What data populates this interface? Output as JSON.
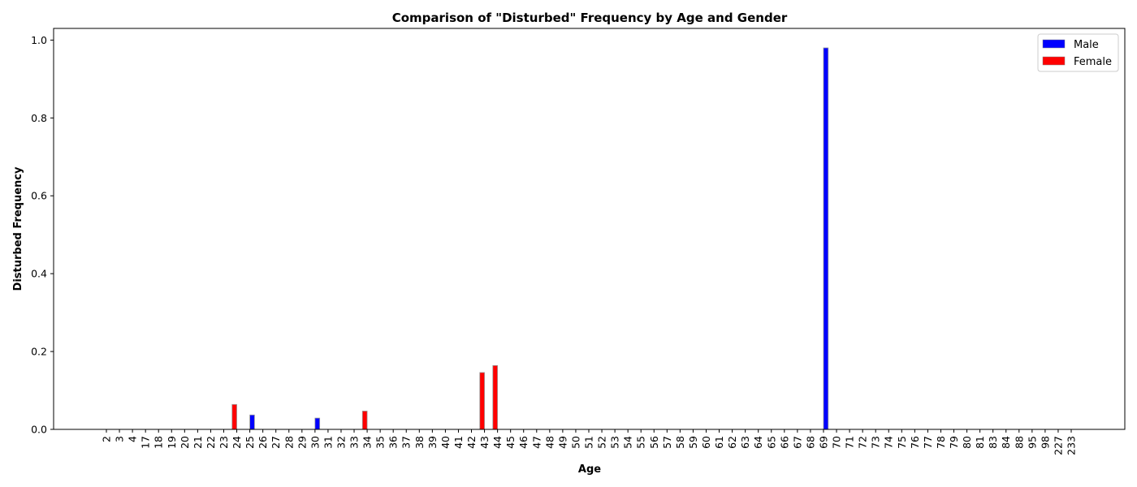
{
  "chart_data": {
    "type": "bar",
    "title": "Comparison of \"Disturbed\" Frequency by Age and Gender",
    "xlabel": "Age",
    "ylabel": "Disturbed Frequency",
    "ylim": [
      0,
      1.03
    ],
    "yticks": [
      "0.0",
      "0.2",
      "0.4",
      "0.6",
      "0.8",
      "1.0"
    ],
    "grid": false,
    "legend_position": "top-right",
    "categories": [
      "2",
      "3",
      "4",
      "17",
      "18",
      "19",
      "20",
      "21",
      "22",
      "23",
      "24",
      "25",
      "26",
      "27",
      "28",
      "29",
      "30",
      "31",
      "32",
      "33",
      "34",
      "35",
      "36",
      "37",
      "38",
      "39",
      "40",
      "41",
      "42",
      "43",
      "44",
      "45",
      "46",
      "47",
      "48",
      "49",
      "50",
      "51",
      "52",
      "53",
      "54",
      "55",
      "56",
      "57",
      "58",
      "59",
      "60",
      "61",
      "62",
      "63",
      "64",
      "65",
      "66",
      "67",
      "68",
      "69",
      "70",
      "71",
      "72",
      "73",
      "74",
      "75",
      "76",
      "77",
      "78",
      "79",
      "80",
      "81",
      "83",
      "84",
      "88",
      "95",
      "98",
      "227",
      "233"
    ],
    "series": [
      {
        "name": "Male",
        "color": "#0000ff",
        "values": [
          0,
          0,
          0,
          0,
          0,
          0,
          0,
          0,
          0,
          0,
          0,
          0.037,
          0,
          0,
          0,
          0,
          0.029,
          0,
          0,
          0,
          0,
          0,
          0,
          0,
          0,
          0,
          0,
          0,
          0,
          0,
          0,
          0,
          0,
          0,
          0,
          0,
          0,
          0,
          0,
          0,
          0,
          0,
          0,
          0,
          0,
          0,
          0,
          0,
          0,
          0,
          0,
          0,
          0,
          0,
          0,
          0.98,
          0,
          0,
          0,
          0,
          0,
          0,
          0,
          0,
          0,
          0,
          0,
          0,
          0,
          0,
          0,
          0,
          0,
          0,
          0
        ]
      },
      {
        "name": "Female",
        "color": "#ff0000",
        "values": [
          0,
          0,
          0,
          0,
          0,
          0,
          0,
          0,
          0,
          0,
          0.064,
          0,
          0,
          0,
          0,
          0,
          0,
          0,
          0,
          0,
          0.047,
          0,
          0,
          0,
          0,
          0,
          0,
          0,
          0,
          0.146,
          0.164,
          0,
          0,
          0,
          0,
          0,
          0,
          0,
          0,
          0,
          0,
          0,
          0,
          0,
          0,
          0,
          0,
          0,
          0,
          0,
          0,
          0,
          0,
          0,
          0,
          0,
          0,
          0,
          0,
          0,
          0,
          0,
          0,
          0,
          0,
          0,
          0,
          0,
          0,
          0,
          0,
          0,
          0,
          0,
          0
        ]
      }
    ]
  }
}
